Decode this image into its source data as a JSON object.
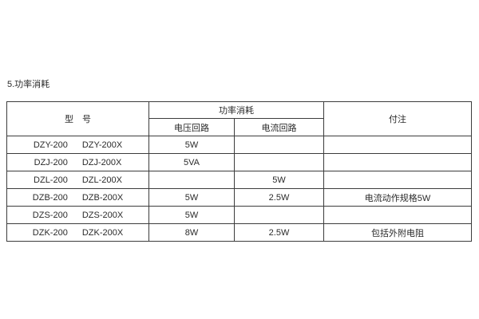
{
  "page": {
    "section_title": "5.功率消耗",
    "background_color": "#ffffff",
    "border_color": "#3c3c3c",
    "text_color": "#2a2a2a"
  },
  "table": {
    "header": {
      "model": "型　号",
      "power_group": "功率消耗",
      "voltage_circuit": "电压回路",
      "current_circuit": "电流回路",
      "notes": "付注"
    },
    "rows": [
      {
        "model_a": "DZY-200",
        "model_b": "DZY-200X",
        "voltage": "5W",
        "current": "",
        "note": ""
      },
      {
        "model_a": "DZJ-200",
        "model_b": "DZJ-200X",
        "voltage": "5VA",
        "current": "",
        "note": ""
      },
      {
        "model_a": "DZL-200",
        "model_b": "DZL-200X",
        "voltage": "",
        "current": "5W",
        "note": ""
      },
      {
        "model_a": "DZB-200",
        "model_b": "DZB-200X",
        "voltage": "5W",
        "current": "2.5W",
        "note": "电流动作规格5W"
      },
      {
        "model_a": "DZS-200",
        "model_b": "DZS-200X",
        "voltage": "5W",
        "current": "",
        "note": ""
      },
      {
        "model_a": "DZK-200",
        "model_b": "DZK-200X",
        "voltage": "8W",
        "current": "2.5W",
        "note": "包括外附电阻"
      }
    ]
  }
}
